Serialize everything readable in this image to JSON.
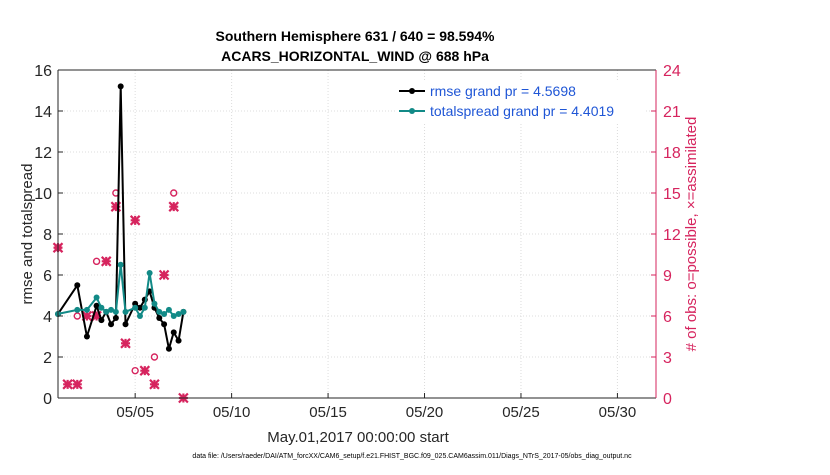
{
  "chart_data": {
    "type": "line",
    "title": [
      "Southern Hemisphere 631 / 640 = 98.594%",
      "ACARS_HORIZONTAL_WIND @ 688 hPa"
    ],
    "xlabel": "May.01,2017 00:00:00 start",
    "ylabel": "rmse and totalspread",
    "y2label": "# of obs: o=possible, ×=assimilated",
    "footer": "data file: /Users/raeder/DAI/ATM_forcXX/CAM6_setup/f.e21.FHIST_BGC.f09_025.CAM6assim.011/Diags_NTrS_2017-05/obs_diag_output.nc",
    "xlim": [
      "2017-05-01",
      "2017-06-01"
    ],
    "ylim": [
      0,
      16
    ],
    "y2lim": [
      0,
      24
    ],
    "xticks": [
      "05/05",
      "05/10",
      "05/15",
      "05/20",
      "05/25",
      "05/30"
    ],
    "yticks": [
      "0",
      "2",
      "4",
      "6",
      "8",
      "10",
      "12",
      "14",
      "16"
    ],
    "y2ticks": [
      "0",
      "3",
      "6",
      "9",
      "12",
      "15",
      "18",
      "21",
      "24"
    ],
    "grid": true,
    "legend_position": "top-right",
    "colors": {
      "rmse": "#000000",
      "spread": "#128a87",
      "obs": "#d6245e",
      "legend_text": "#1f56d6",
      "axis": "#262626"
    },
    "series": [
      {
        "name": "rmse grand pr = 4.5698",
        "x": [
          "2017-05-01",
          "2017-05-02",
          "2017-05-02T12",
          "2017-05-03",
          "2017-05-03T06",
          "2017-05-03T12",
          "2017-05-03T18",
          "2017-05-04",
          "2017-05-04T06",
          "2017-05-04T12",
          "2017-05-05",
          "2017-05-05T06",
          "2017-05-05T12",
          "2017-05-05T18",
          "2017-05-06",
          "2017-05-06T06",
          "2017-05-06T12",
          "2017-05-06T18",
          "2017-05-07",
          "2017-05-07T06",
          "2017-05-07T12"
        ],
        "y": [
          4.1,
          5.5,
          3.0,
          4.5,
          3.8,
          4.2,
          3.6,
          3.9,
          15.2,
          3.6,
          4.6,
          4.4,
          4.8,
          5.2,
          4.4,
          3.9,
          3.6,
          2.4,
          3.2,
          2.8,
          4.2
        ]
      },
      {
        "name": "totalspread grand pr = 4.4019",
        "x": [
          "2017-05-01",
          "2017-05-02",
          "2017-05-02T12",
          "2017-05-03",
          "2017-05-03T06",
          "2017-05-03T12",
          "2017-05-03T18",
          "2017-05-04",
          "2017-05-04T06",
          "2017-05-04T12",
          "2017-05-05",
          "2017-05-05T06",
          "2017-05-05T12",
          "2017-05-05T18",
          "2017-05-06",
          "2017-05-06T06",
          "2017-05-06T12",
          "2017-05-06T18",
          "2017-05-07",
          "2017-05-07T06",
          "2017-05-07T12"
        ],
        "y": [
          4.1,
          4.3,
          4.3,
          4.9,
          4.4,
          4.2,
          4.3,
          4.2,
          6.5,
          4.2,
          4.4,
          4.0,
          4.4,
          6.1,
          4.6,
          4.2,
          4.1,
          4.3,
          4.0,
          4.1,
          4.2
        ]
      }
    ],
    "obs_series": [
      {
        "name": "possible",
        "x": [
          "2017-05-01",
          "2017-05-02",
          "2017-05-03",
          "2017-05-04",
          "2017-05-05",
          "2017-05-06",
          "2017-05-07"
        ],
        "y": [
          11,
          6,
          10,
          15,
          2,
          3,
          15
        ]
      },
      {
        "name": "assimilated",
        "x": [
          "2017-05-01",
          "2017-05-01T12",
          "2017-05-02",
          "2017-05-02T12",
          "2017-05-03",
          "2017-05-03T12",
          "2017-05-04",
          "2017-05-04T12",
          "2017-05-05",
          "2017-05-05T12",
          "2017-05-06",
          "2017-05-06T12",
          "2017-05-07",
          "2017-05-07T12"
        ],
        "y": [
          11,
          1,
          1,
          6,
          6,
          10,
          14,
          4,
          13,
          2,
          1,
          9,
          14,
          0
        ]
      }
    ]
  }
}
